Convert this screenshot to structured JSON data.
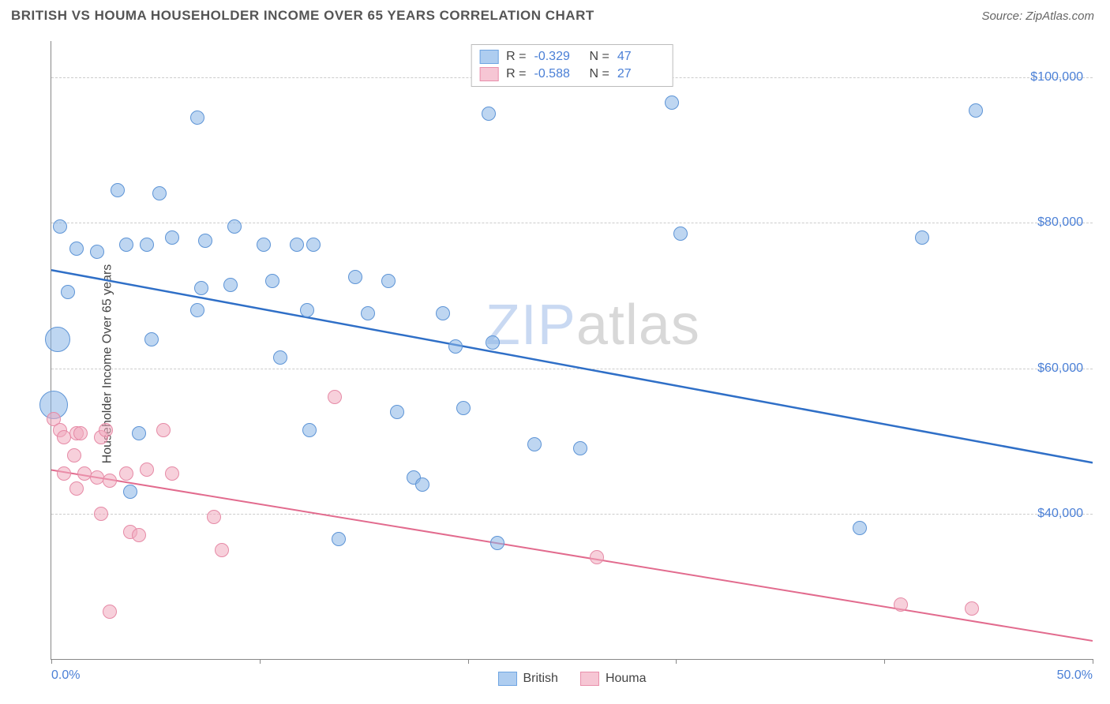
{
  "title": "BRITISH VS HOUMA HOUSEHOLDER INCOME OVER 65 YEARS CORRELATION CHART",
  "source": "Source: ZipAtlas.com",
  "ylabel": "Householder Income Over 65 years",
  "watermark_part1": "ZIP",
  "watermark_part2": "atlas",
  "chart": {
    "type": "scatter",
    "background_color": "#ffffff",
    "grid_color": "#cccccc",
    "axis_color": "#888888",
    "label_color": "#4a7fd6",
    "text_color": "#444444",
    "xlim": [
      0,
      50
    ],
    "ylim": [
      20000,
      105000
    ],
    "x_tick_positions": [
      0,
      10,
      20,
      30,
      40,
      50
    ],
    "x_tick_labels_shown": {
      "0": "0.0%",
      "50": "50.0%"
    },
    "y_gridlines": [
      40000,
      60000,
      80000,
      100000
    ],
    "y_tick_labels": {
      "40000": "$40,000",
      "60000": "$60,000",
      "80000": "$80,000",
      "100000": "$100,000"
    },
    "legend_top": [
      {
        "swatch_fill": "#aecdf0",
        "swatch_border": "#6fa5e2",
        "r_label": "R =",
        "r_value": "-0.329",
        "n_label": "N =",
        "n_value": "47"
      },
      {
        "swatch_fill": "#f6c6d4",
        "swatch_border": "#e98fab",
        "r_label": "R =",
        "r_value": "-0.588",
        "n_label": "N =",
        "n_value": "27"
      }
    ],
    "legend_bottom": [
      {
        "swatch_fill": "#aecdf0",
        "swatch_border": "#6fa5e2",
        "label": "British"
      },
      {
        "swatch_fill": "#f6c6d4",
        "swatch_border": "#e98fab",
        "label": "Houma"
      }
    ],
    "series": [
      {
        "name": "British",
        "point_fill": "rgba(137,181,230,0.55)",
        "point_border": "#5d94d6",
        "trend_color": "#2f6fc7",
        "trend_width": 2.5,
        "trend": {
          "x1_pct": 0,
          "y1": 73500,
          "x2_pct": 50,
          "y2": 47000
        },
        "default_radius": 9,
        "points": [
          {
            "x": 0.4,
            "y": 79500
          },
          {
            "x": 1.2,
            "y": 76500
          },
          {
            "x": 2.2,
            "y": 76000
          },
          {
            "x": 0.8,
            "y": 70500
          },
          {
            "x": 0.3,
            "y": 64000,
            "r": 16
          },
          {
            "x": 0.1,
            "y": 55000,
            "r": 18
          },
          {
            "x": 3.2,
            "y": 84500
          },
          {
            "x": 5.2,
            "y": 84000
          },
          {
            "x": 3.6,
            "y": 77000
          },
          {
            "x": 4.6,
            "y": 77000
          },
          {
            "x": 5.8,
            "y": 78000
          },
          {
            "x": 4.8,
            "y": 64000
          },
          {
            "x": 4.2,
            "y": 51000
          },
          {
            "x": 3.8,
            "y": 43000
          },
          {
            "x": 7.0,
            "y": 94500
          },
          {
            "x": 7.4,
            "y": 77500
          },
          {
            "x": 7.2,
            "y": 71000
          },
          {
            "x": 7.0,
            "y": 68000
          },
          {
            "x": 8.8,
            "y": 79500
          },
          {
            "x": 8.6,
            "y": 71500
          },
          {
            "x": 10.2,
            "y": 77000
          },
          {
            "x": 10.6,
            "y": 72000
          },
          {
            "x": 11.8,
            "y": 77000
          },
          {
            "x": 11.0,
            "y": 61500
          },
          {
            "x": 12.6,
            "y": 77000
          },
          {
            "x": 12.3,
            "y": 68000
          },
          {
            "x": 12.4,
            "y": 51500
          },
          {
            "x": 13.8,
            "y": 36500
          },
          {
            "x": 14.6,
            "y": 72500
          },
          {
            "x": 15.2,
            "y": 67500
          },
          {
            "x": 16.2,
            "y": 72000
          },
          {
            "x": 16.6,
            "y": 54000
          },
          {
            "x": 17.4,
            "y": 45000
          },
          {
            "x": 17.8,
            "y": 44000
          },
          {
            "x": 18.8,
            "y": 67500
          },
          {
            "x": 19.4,
            "y": 63000
          },
          {
            "x": 19.8,
            "y": 54500
          },
          {
            "x": 21.0,
            "y": 95000
          },
          {
            "x": 21.2,
            "y": 63500
          },
          {
            "x": 21.4,
            "y": 36000
          },
          {
            "x": 23.2,
            "y": 49500
          },
          {
            "x": 25.4,
            "y": 49000
          },
          {
            "x": 29.8,
            "y": 96500
          },
          {
            "x": 30.2,
            "y": 78500
          },
          {
            "x": 38.8,
            "y": 38000
          },
          {
            "x": 41.8,
            "y": 78000
          },
          {
            "x": 44.4,
            "y": 95500
          }
        ]
      },
      {
        "name": "Houma",
        "point_fill": "rgba(241,170,190,0.55)",
        "point_border": "#e68aa6",
        "trend_color": "#e26b8e",
        "trend_width": 2,
        "trend": {
          "x1_pct": 0,
          "y1": 46000,
          "x2_pct": 50,
          "y2": 22500
        },
        "default_radius": 9,
        "points": [
          {
            "x": 0.1,
            "y": 53000
          },
          {
            "x": 0.4,
            "y": 51500
          },
          {
            "x": 0.6,
            "y": 50500
          },
          {
            "x": 1.2,
            "y": 51000
          },
          {
            "x": 1.4,
            "y": 51000
          },
          {
            "x": 1.1,
            "y": 48000
          },
          {
            "x": 0.6,
            "y": 45500
          },
          {
            "x": 1.6,
            "y": 45500
          },
          {
            "x": 1.2,
            "y": 43500
          },
          {
            "x": 2.4,
            "y": 50500
          },
          {
            "x": 2.6,
            "y": 51500
          },
          {
            "x": 2.2,
            "y": 45000
          },
          {
            "x": 2.8,
            "y": 44500
          },
          {
            "x": 2.4,
            "y": 40000
          },
          {
            "x": 2.8,
            "y": 26500
          },
          {
            "x": 3.6,
            "y": 45500
          },
          {
            "x": 3.8,
            "y": 37500
          },
          {
            "x": 4.6,
            "y": 46000
          },
          {
            "x": 4.2,
            "y": 37000
          },
          {
            "x": 5.4,
            "y": 51500
          },
          {
            "x": 5.8,
            "y": 45500
          },
          {
            "x": 7.8,
            "y": 39500
          },
          {
            "x": 8.2,
            "y": 35000
          },
          {
            "x": 13.6,
            "y": 56000
          },
          {
            "x": 26.2,
            "y": 34000
          },
          {
            "x": 40.8,
            "y": 27500
          },
          {
            "x": 44.2,
            "y": 27000
          }
        ]
      }
    ]
  }
}
